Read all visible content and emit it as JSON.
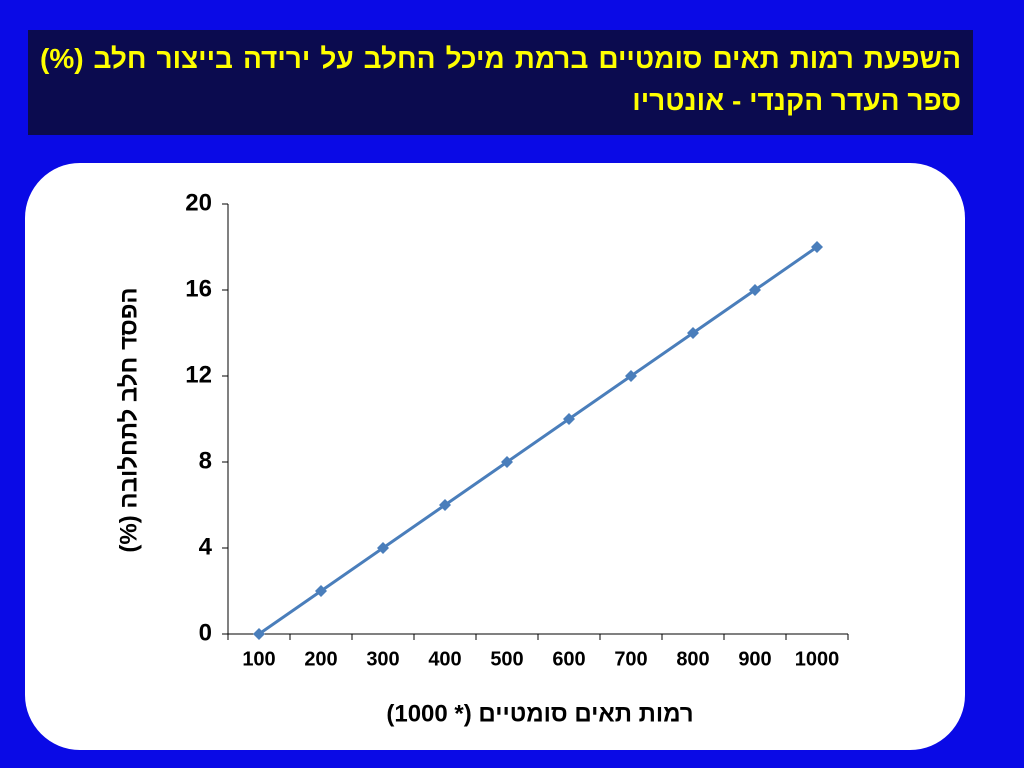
{
  "chart_data": {
    "type": "line",
    "title": "השפעת רמות תאים סומטיים ברמת מיכל החלב על ירידה בייצור חלב (%) ספר העדר הקנדי - אונטריו",
    "x_label": "רמות תאים סומטיים (* 1000)",
    "y_label": "הפסד חלב לתחלובה (%)",
    "categories": [
      "100",
      "200",
      "300",
      "400",
      "500",
      "600",
      "700",
      "800",
      "900",
      "1000"
    ],
    "values": [
      0,
      2,
      4,
      6,
      8,
      10,
      12,
      14,
      16,
      18
    ],
    "color": "#4a7ebb",
    "ylim": [
      0,
      20
    ],
    "yticks": [
      0,
      4,
      8,
      12,
      16,
      20
    ],
    "grid": false
  }
}
